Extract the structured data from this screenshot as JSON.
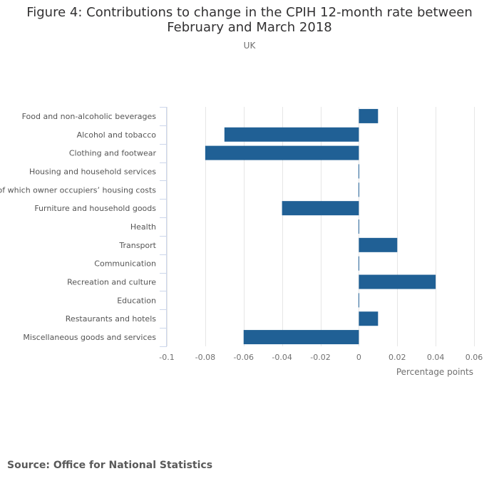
{
  "header": {
    "title_line1": "Figure 4: Contributions to change in the CPIH 12-month rate between",
    "title_line2": "February and March 2018",
    "subtitle": "UK"
  },
  "footer": {
    "source": "Source: Office for National Statistics"
  },
  "colors": {
    "bar": "#206095",
    "grid": "#e6e6e6",
    "axis": "#ccd6eb",
    "text": "#707070"
  },
  "chart_data": {
    "type": "bar",
    "orientation": "horizontal",
    "title": "Figure 4: Contributions to change in the CPIH 12-month rate between February and March 2018",
    "subtitle": "UK",
    "xlabel": "Percentage points",
    "ylabel": "",
    "xlim": [
      -0.1,
      0.06
    ],
    "grid": true,
    "categories": [
      "Food and non-alcoholic beverages",
      "Alcohol and tobacco",
      "Clothing and footwear",
      "Housing and household services",
      "of which owner occupiers’ housing costs",
      "Furniture and household goods",
      "Health",
      "Transport",
      "Communication",
      "Recreation and culture",
      "Education",
      "Restaurants and hotels",
      "Miscellaneous goods and services"
    ],
    "values": [
      0.01,
      -0.07,
      -0.08,
      0,
      0,
      -0.04,
      0,
      0.02,
      0,
      0.04,
      0,
      0.01,
      -0.06
    ],
    "ticks": [
      -0.1,
      -0.08,
      -0.06,
      -0.04,
      -0.02,
      0,
      0.02,
      0.04,
      0.06
    ],
    "tick_labels": [
      "-0.1",
      "-0.08",
      "-0.06",
      "-0.04",
      "-0.02",
      "0",
      "0.02",
      "0.04",
      "0.06"
    ]
  }
}
